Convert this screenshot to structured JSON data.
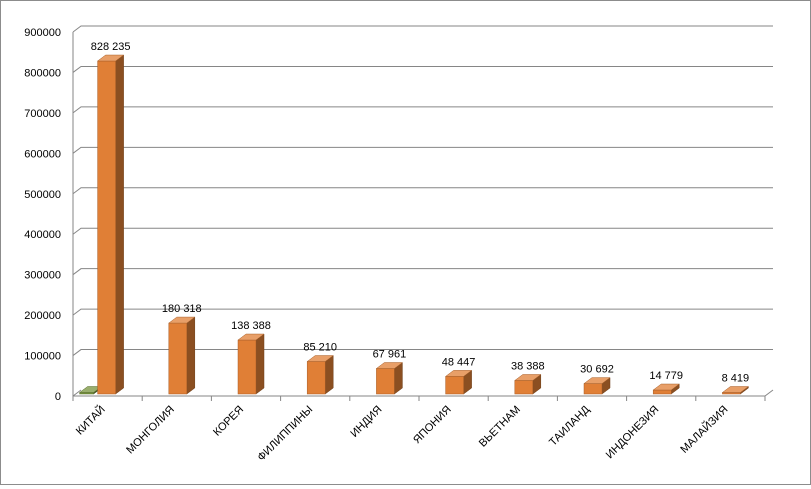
{
  "chart_data": {
    "type": "bar",
    "style": "3d-column",
    "categories": [
      "КИТАЙ",
      "МОНГОЛИЯ",
      "КОРЕЯ",
      "ФИЛИППИНЫ",
      "ИНДИЯ",
      "ЯПОНИЯ",
      "ВЬЕТНАМ",
      "ТАИЛАНД",
      "ИНДОНЕЗИЯ",
      "МАЛАЙЗИЯ"
    ],
    "series": [
      {
        "color": "#77933c",
        "values": [
          2000,
          0,
          0,
          0,
          0,
          0,
          0,
          0,
          0,
          0
        ],
        "show_labels": false
      },
      {
        "color": "#e07f36",
        "values": [
          828235,
          180318,
          138388,
          85210,
          67961,
          48447,
          38388,
          30692,
          14779,
          8419
        ],
        "show_labels": true
      }
    ],
    "data_labels": [
      "828 235",
      "180 318",
      "138 388",
      "85 210",
      "67 961",
      "48 447",
      "38 388",
      "30 692",
      "14 779",
      "8 419"
    ],
    "y_ticks": [
      "0",
      "100000",
      "200000",
      "300000",
      "400000",
      "500000",
      "600000",
      "700000",
      "800000",
      "900000"
    ],
    "ylim": [
      0,
      900000
    ],
    "grid": true,
    "legend": "none"
  }
}
